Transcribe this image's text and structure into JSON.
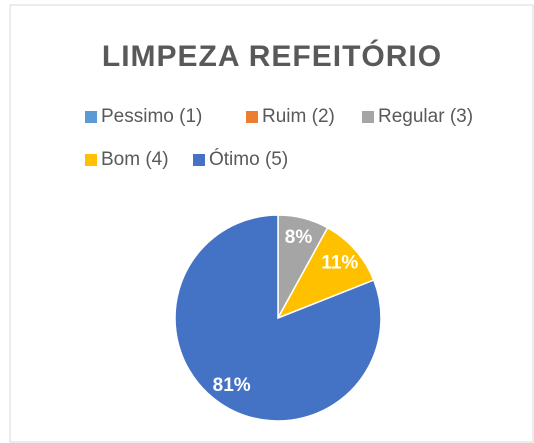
{
  "chart_data": {
    "type": "pie",
    "title": "LIMPEZA REFEITÓRIO",
    "categories": [
      "Pessimo (1)",
      "Ruim (2)",
      "Regular (3)",
      "Bom (4)",
      "Ótimo (5)"
    ],
    "values": [
      0,
      0,
      8,
      11,
      81
    ],
    "colors": [
      "#5b9bd5",
      "#ed7d31",
      "#a5a5a5",
      "#ffc000",
      "#4472c4"
    ],
    "legend": "top"
  }
}
